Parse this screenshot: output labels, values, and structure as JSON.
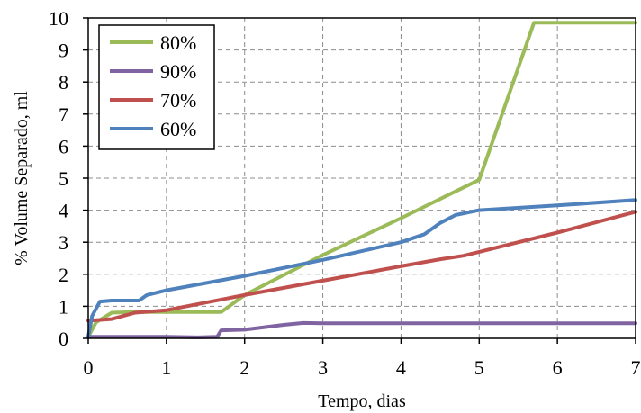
{
  "chart_data": {
    "type": "line",
    "xlabel": "Tempo, dias",
    "ylabel": "% Volume Separado, ml",
    "xlim": [
      0,
      7
    ],
    "ylim": [
      0,
      10
    ],
    "x_ticks": [
      0,
      1,
      2,
      3,
      4,
      5,
      6,
      7
    ],
    "y_ticks": [
      0,
      1,
      2,
      3,
      4,
      5,
      6,
      7,
      8,
      9,
      10
    ],
    "grid": true,
    "legend_position": "top-left",
    "series": [
      {
        "name": "80%",
        "color": "#9bbb59",
        "points": [
          [
            0,
            0.05
          ],
          [
            0.1,
            0.5
          ],
          [
            0.3,
            0.8
          ],
          [
            0.6,
            0.82
          ],
          [
            1.0,
            0.82
          ],
          [
            1.3,
            0.82
          ],
          [
            1.7,
            0.82
          ],
          [
            2.0,
            1.35
          ],
          [
            3.0,
            2.6
          ],
          [
            4.0,
            3.75
          ],
          [
            5.0,
            4.95
          ],
          [
            5.7,
            9.85
          ],
          [
            7.0,
            9.85
          ]
        ]
      },
      {
        "name": "90%",
        "color": "#8064a2",
        "points": [
          [
            0,
            0.05
          ],
          [
            1.0,
            0.05
          ],
          [
            1.4,
            0.03
          ],
          [
            1.65,
            0.05
          ],
          [
            1.7,
            0.25
          ],
          [
            2.0,
            0.27
          ],
          [
            2.5,
            0.42
          ],
          [
            2.75,
            0.48
          ],
          [
            3.0,
            0.47
          ],
          [
            7.0,
            0.47
          ]
        ]
      },
      {
        "name": "70%",
        "color": "#c0504d",
        "points": [
          [
            0,
            0.55
          ],
          [
            0.3,
            0.6
          ],
          [
            0.6,
            0.8
          ],
          [
            1.0,
            0.88
          ],
          [
            2.0,
            1.35
          ],
          [
            3.0,
            1.8
          ],
          [
            4.0,
            2.25
          ],
          [
            4.5,
            2.47
          ],
          [
            4.8,
            2.58
          ],
          [
            5.0,
            2.7
          ],
          [
            6.0,
            3.3
          ],
          [
            7.0,
            3.95
          ]
        ]
      },
      {
        "name": "60%",
        "color": "#4f81bd",
        "points": [
          [
            0,
            0.05
          ],
          [
            0.05,
            0.7
          ],
          [
            0.15,
            1.15
          ],
          [
            0.3,
            1.18
          ],
          [
            0.65,
            1.18
          ],
          [
            0.75,
            1.35
          ],
          [
            1.0,
            1.5
          ],
          [
            2.0,
            1.95
          ],
          [
            3.0,
            2.45
          ],
          [
            4.0,
            3.0
          ],
          [
            4.3,
            3.25
          ],
          [
            4.5,
            3.6
          ],
          [
            4.7,
            3.85
          ],
          [
            5.0,
            4.0
          ],
          [
            6.0,
            4.15
          ],
          [
            7.0,
            4.32
          ]
        ]
      }
    ]
  }
}
